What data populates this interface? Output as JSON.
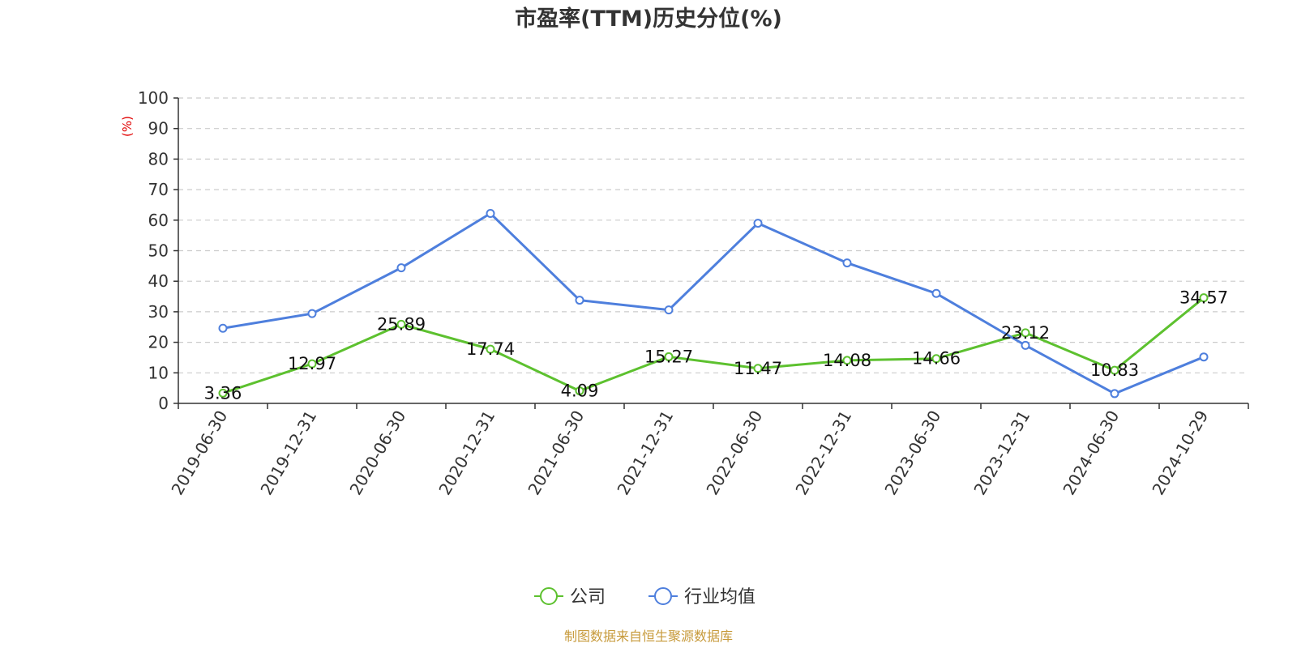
{
  "chart_data": {
    "type": "line",
    "title": "市盈率(TTM)历史分位(%)",
    "ylabel": "(%)",
    "ylim": [
      0,
      100
    ],
    "yticks": [
      "0",
      "10",
      "20",
      "30",
      "40",
      "50",
      "60",
      "70",
      "80",
      "90",
      "100"
    ],
    "grid": true,
    "legend_position": "bottom-center",
    "categories": [
      "2019-06-30",
      "2019-12-31",
      "2020-06-30",
      "2020-12-31",
      "2021-06-30",
      "2021-12-31",
      "2022-06-30",
      "2022-12-31",
      "2023-06-30",
      "2023-12-31",
      "2024-06-30",
      "2024-10-29"
    ],
    "series": [
      {
        "name": "公司",
        "color": "#5dc12f",
        "values": [
          3.36,
          12.97,
          25.89,
          17.74,
          4.09,
          15.27,
          11.47,
          14.08,
          14.66,
          23.12,
          10.83,
          34.57
        ],
        "labels": [
          "3.36",
          "12.97",
          "25.89",
          "17.74",
          "4.09",
          "15.27",
          "11.47",
          "14.08",
          "14.66",
          "23.12",
          "10.83",
          "34.57"
        ]
      },
      {
        "name": "行业均值",
        "color": "#4e7fdd",
        "values": [
          24.6,
          29.4,
          44.4,
          62.2,
          33.8,
          30.6,
          59.0,
          46.0,
          36.0,
          19.0,
          3.2,
          15.2
        ]
      }
    ],
    "source": "制图数据来自恒生聚源数据库"
  }
}
